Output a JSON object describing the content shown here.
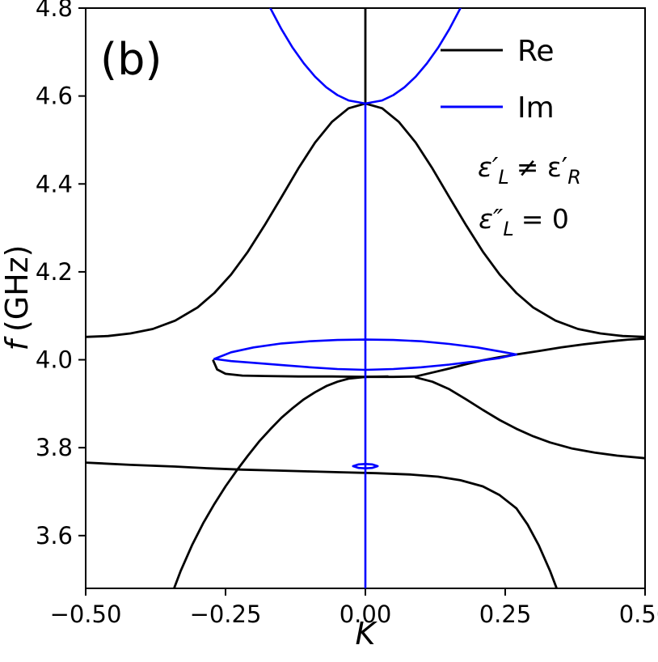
{
  "panel_label": "(b)",
  "xlabel": "K",
  "ylabel": {
    "italic": "f",
    "rest": "(GHz)"
  },
  "legend": [
    {
      "label": "Re",
      "color": "#000000"
    },
    {
      "label": "Im",
      "color": "#0000ff"
    }
  ],
  "annotations": {
    "line1": {
      "eps1": "ε′",
      "sub1": "L",
      "mid": "≠ ε′",
      "sub2": "R"
    },
    "line2": {
      "eps": "ε″",
      "sub": "L",
      "rest": "= 0"
    }
  },
  "chart_data": {
    "type": "line",
    "title": "",
    "xlabel": "K",
    "ylabel": "f (GHz)",
    "xlim": [
      -0.5,
      0.5
    ],
    "ylim": [
      3.48,
      4.8
    ],
    "grid": false,
    "legend_position": "upper right",
    "xticks": {
      "values": [
        -0.5,
        -0.25,
        0,
        0.25,
        0.5
      ],
      "labels": [
        "−0.50",
        "−0.25",
        "0.00",
        "0.25",
        "0.50"
      ]
    },
    "yticks": {
      "values": [
        3.6,
        3.8,
        4.0,
        4.2,
        4.4,
        4.6,
        4.8
      ],
      "labels": [
        "3.6",
        "3.8",
        "4.0",
        "4.2",
        "4.4",
        "4.6",
        "4.8"
      ]
    },
    "series": [
      {
        "name": "re-upper-dome-band",
        "legend": "Re",
        "color": "#000000",
        "width": 2.8,
        "points": [
          [
            -0.5,
            4.052
          ],
          [
            -0.46,
            4.054
          ],
          [
            -0.42,
            4.06
          ],
          [
            -0.38,
            4.07
          ],
          [
            -0.34,
            4.089
          ],
          [
            -0.3,
            4.119
          ],
          [
            -0.27,
            4.152
          ],
          [
            -0.24,
            4.194
          ],
          [
            -0.21,
            4.246
          ],
          [
            -0.18,
            4.306
          ],
          [
            -0.15,
            4.37
          ],
          [
            -0.12,
            4.435
          ],
          [
            -0.09,
            4.494
          ],
          [
            -0.06,
            4.541
          ],
          [
            -0.03,
            4.572
          ],
          [
            0,
            4.583
          ],
          [
            0.03,
            4.572
          ],
          [
            0.06,
            4.541
          ],
          [
            0.09,
            4.494
          ],
          [
            0.12,
            4.435
          ],
          [
            0.15,
            4.37
          ],
          [
            0.18,
            4.306
          ],
          [
            0.21,
            4.246
          ],
          [
            0.24,
            4.194
          ],
          [
            0.27,
            4.152
          ],
          [
            0.3,
            4.119
          ],
          [
            0.34,
            4.089
          ],
          [
            0.38,
            4.07
          ],
          [
            0.42,
            4.06
          ],
          [
            0.46,
            4.054
          ],
          [
            0.5,
            4.052
          ]
        ]
      },
      {
        "name": "re-gap-vertical-k0",
        "legend": "Re",
        "color": "#000000",
        "width": 2.8,
        "points": [
          [
            0,
            4.583
          ],
          [
            0,
            4.8
          ]
        ]
      },
      {
        "name": "re-flat-band-left-to-dive",
        "legend": "Re",
        "color": "#000000",
        "width": 2.8,
        "points": [
          [
            -0.5,
            3.766
          ],
          [
            -0.42,
            3.761
          ],
          [
            -0.34,
            3.757
          ],
          [
            -0.28,
            3.753
          ],
          [
            -0.22,
            3.75
          ],
          [
            -0.16,
            3.748
          ],
          [
            -0.1,
            3.746
          ],
          [
            -0.04,
            3.744
          ],
          [
            0.02,
            3.742
          ],
          [
            0.08,
            3.739
          ],
          [
            0.13,
            3.734
          ],
          [
            0.17,
            3.726
          ],
          [
            0.21,
            3.712
          ],
          [
            0.24,
            3.692
          ],
          [
            0.27,
            3.662
          ],
          [
            0.29,
            3.625
          ],
          [
            0.31,
            3.578
          ],
          [
            0.33,
            3.52
          ],
          [
            0.345,
            3.47
          ]
        ]
      },
      {
        "name": "re-rising-band-left",
        "legend": "Re",
        "color": "#000000",
        "width": 2.8,
        "points": [
          [
            -0.345,
            3.47
          ],
          [
            -0.33,
            3.52
          ],
          [
            -0.31,
            3.578
          ],
          [
            -0.29,
            3.628
          ],
          [
            -0.27,
            3.672
          ],
          [
            -0.25,
            3.712
          ],
          [
            -0.23,
            3.748
          ],
          [
            -0.21,
            3.782
          ],
          [
            -0.19,
            3.814
          ],
          [
            -0.17,
            3.842
          ],
          [
            -0.15,
            3.868
          ],
          [
            -0.13,
            3.89
          ],
          [
            -0.11,
            3.91
          ],
          [
            -0.09,
            3.926
          ],
          [
            -0.07,
            3.94
          ],
          [
            -0.05,
            3.95
          ],
          [
            -0.03,
            3.957
          ],
          [
            0.0,
            3.961
          ],
          [
            0.04,
            3.962
          ]
        ]
      },
      {
        "name": "re-flat-middle-band",
        "legend": "Re",
        "color": "#000000",
        "width": 2.8,
        "points": [
          [
            -0.272,
            3.998
          ],
          [
            -0.265,
            3.978
          ],
          [
            -0.25,
            3.968
          ],
          [
            -0.22,
            3.964
          ],
          [
            -0.18,
            3.963
          ],
          [
            -0.12,
            3.962
          ],
          [
            -0.06,
            3.962
          ],
          [
            0.0,
            3.961
          ],
          [
            0.05,
            3.961
          ],
          [
            0.09,
            3.962
          ]
        ]
      },
      {
        "name": "re-right-upper-branch",
        "legend": "Re",
        "color": "#000000",
        "width": 2.8,
        "points": [
          [
            0.09,
            3.962
          ],
          [
            0.12,
            3.971
          ],
          [
            0.15,
            3.98
          ],
          [
            0.18,
            3.99
          ],
          [
            0.21,
            3.999
          ],
          [
            0.24,
            4.006
          ],
          [
            0.27,
            4.012
          ],
          [
            0.31,
            4.02
          ],
          [
            0.35,
            4.028
          ],
          [
            0.39,
            4.035
          ],
          [
            0.43,
            4.041
          ],
          [
            0.47,
            4.046
          ],
          [
            0.5,
            4.048
          ]
        ]
      },
      {
        "name": "re-right-lower-branch",
        "legend": "Re",
        "color": "#000000",
        "width": 2.8,
        "points": [
          [
            0.09,
            3.96
          ],
          [
            0.12,
            3.95
          ],
          [
            0.15,
            3.933
          ],
          [
            0.18,
            3.91
          ],
          [
            0.21,
            3.886
          ],
          [
            0.24,
            3.863
          ],
          [
            0.27,
            3.843
          ],
          [
            0.3,
            3.826
          ],
          [
            0.33,
            3.812
          ],
          [
            0.37,
            3.798
          ],
          [
            0.41,
            3.789
          ],
          [
            0.45,
            3.782
          ],
          [
            0.5,
            3.776
          ]
        ]
      },
      {
        "name": "im-zero-vertical-k0",
        "legend": "Im",
        "color": "#0000ff",
        "width": 2.6,
        "points": [
          [
            0,
            3.48
          ],
          [
            0,
            4.583
          ]
        ]
      },
      {
        "name": "im-upper-gap-parabola",
        "legend": "Im",
        "color": "#0000ff",
        "width": 2.6,
        "points": [
          [
            -0.17,
            4.8
          ],
          [
            -0.15,
            4.752
          ],
          [
            -0.13,
            4.71
          ],
          [
            -0.11,
            4.674
          ],
          [
            -0.09,
            4.644
          ],
          [
            -0.07,
            4.62
          ],
          [
            -0.05,
            4.602
          ],
          [
            -0.03,
            4.59
          ],
          [
            0,
            4.583
          ],
          [
            0.03,
            4.59
          ],
          [
            0.05,
            4.602
          ],
          [
            0.07,
            4.62
          ],
          [
            0.09,
            4.644
          ],
          [
            0.11,
            4.674
          ],
          [
            0.13,
            4.71
          ],
          [
            0.15,
            4.752
          ],
          [
            0.17,
            4.8
          ]
        ]
      },
      {
        "name": "im-gap-lens-loop",
        "legend": "Im",
        "color": "#0000ff",
        "width": 2.6,
        "points": [
          [
            -0.27,
            4.002
          ],
          [
            -0.24,
            4.017
          ],
          [
            -0.2,
            4.028
          ],
          [
            -0.15,
            4.037
          ],
          [
            -0.1,
            4.042
          ],
          [
            -0.05,
            4.045
          ],
          [
            0,
            4.046
          ],
          [
            0.05,
            4.045
          ],
          [
            0.1,
            4.042
          ],
          [
            0.15,
            4.036
          ],
          [
            0.2,
            4.028
          ],
          [
            0.24,
            4.019
          ],
          [
            0.27,
            4.012
          ],
          [
            0.24,
            4.004
          ],
          [
            0.2,
            3.997
          ],
          [
            0.15,
            3.989
          ],
          [
            0.1,
            3.983
          ],
          [
            0.05,
            3.979
          ],
          [
            0,
            3.977
          ],
          [
            -0.05,
            3.979
          ],
          [
            -0.1,
            3.983
          ],
          [
            -0.15,
            3.988
          ],
          [
            -0.2,
            3.993
          ],
          [
            -0.24,
            3.997
          ],
          [
            -0.27,
            4.002
          ]
        ]
      },
      {
        "name": "im-small-gap-loop",
        "legend": "Im",
        "color": "#0000ff",
        "width": 2.6,
        "points": [
          [
            -0.022,
            3.758
          ],
          [
            -0.012,
            3.762
          ],
          [
            0,
            3.763
          ],
          [
            0.012,
            3.762
          ],
          [
            0.022,
            3.758
          ],
          [
            0.012,
            3.754
          ],
          [
            0,
            3.753
          ],
          [
            -0.012,
            3.754
          ],
          [
            -0.022,
            3.758
          ]
        ]
      }
    ]
  }
}
